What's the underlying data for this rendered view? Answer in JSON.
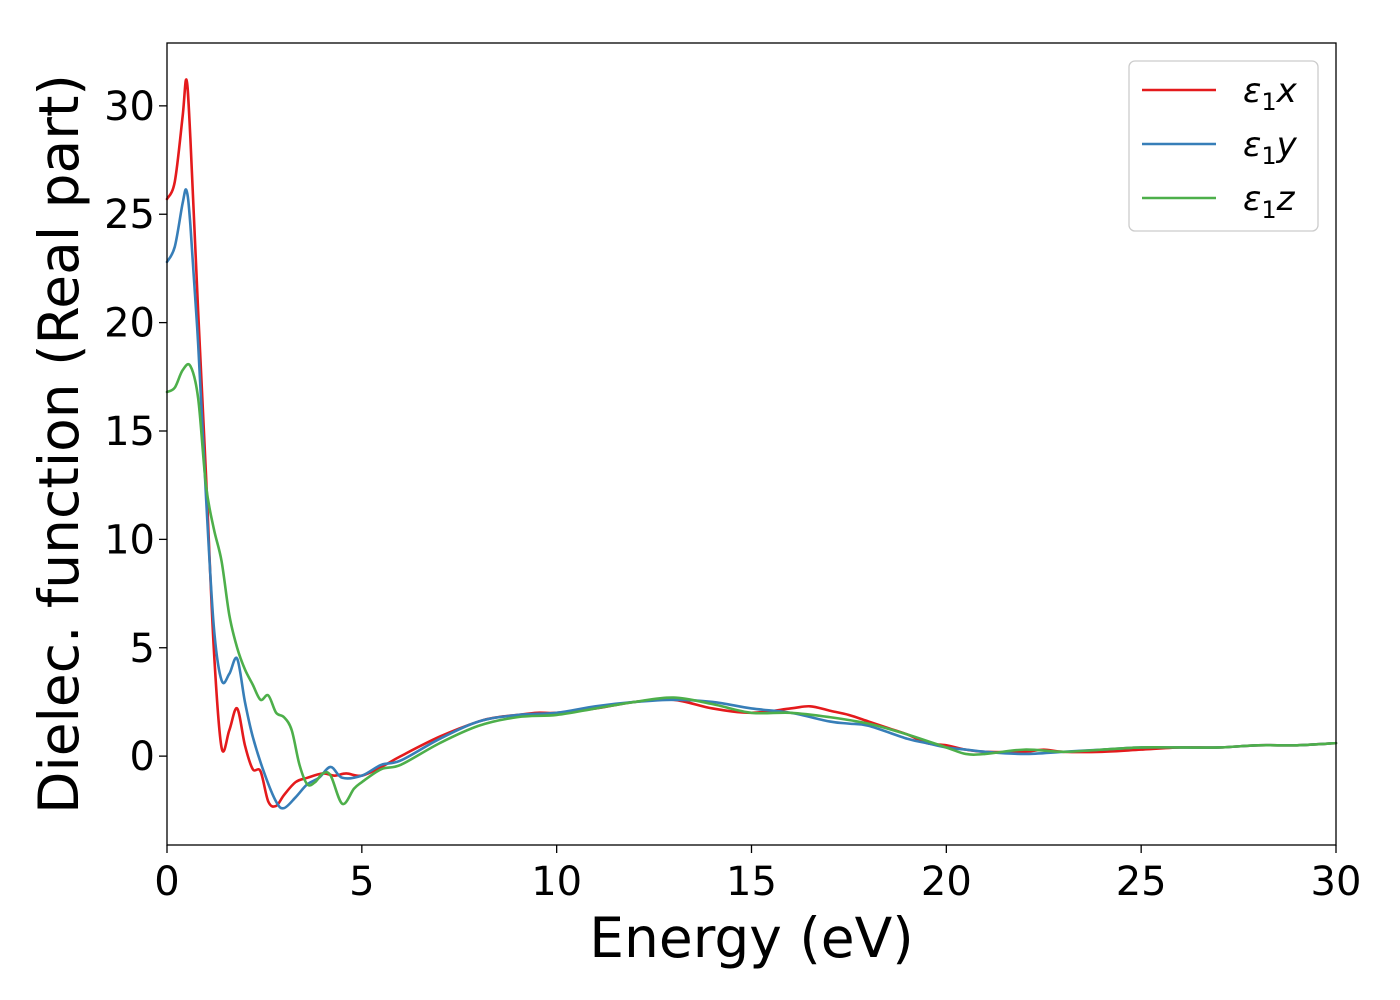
{
  "chart_data": {
    "type": "line",
    "xlabel": "Energy (eV)",
    "ylabel": "Dielec. function (Real part)",
    "xlim": [
      0,
      30
    ],
    "ylim": [
      -4.1,
      32.9
    ],
    "xticks": [
      "0",
      "5",
      "10",
      "15",
      "20",
      "25",
      "30"
    ],
    "yticks": [
      "0",
      "5",
      "10",
      "15",
      "20",
      "25",
      "30"
    ],
    "grid": false,
    "legend_position": "top-right",
    "series": [
      {
        "name": "ε1x",
        "legend": {
          "base": "ε",
          "sub": "1",
          "axis": "x"
        },
        "color": "#e41a1c",
        "x": [
          0,
          0.2,
          0.4,
          0.5,
          0.6,
          0.8,
          1.0,
          1.2,
          1.4,
          1.6,
          1.8,
          2.0,
          2.2,
          2.4,
          2.6,
          2.8,
          3.0,
          3.3,
          3.6,
          4.0,
          4.3,
          4.6,
          5.0,
          5.5,
          6.0,
          7.0,
          8.0,
          8.5,
          9.0,
          9.5,
          10,
          11,
          12,
          13,
          14,
          15,
          16,
          16.5,
          17,
          17.5,
          18,
          18.5,
          19,
          19.5,
          20,
          20.5,
          21,
          22,
          22.5,
          23,
          24,
          25,
          26,
          27,
          28,
          29,
          30
        ],
        "y": [
          25.7,
          26.5,
          29.5,
          31.2,
          28.5,
          20.5,
          13.0,
          5.0,
          0.4,
          1.2,
          2.2,
          0.5,
          -0.6,
          -0.7,
          -2.1,
          -2.3,
          -1.8,
          -1.2,
          -1.0,
          -0.8,
          -0.9,
          -0.8,
          -0.9,
          -0.5,
          0.0,
          0.9,
          1.6,
          1.8,
          1.9,
          2.0,
          2.0,
          2.2,
          2.5,
          2.6,
          2.2,
          2.0,
          2.2,
          2.3,
          2.1,
          1.9,
          1.6,
          1.3,
          1.0,
          0.6,
          0.5,
          0.3,
          0.2,
          0.2,
          0.3,
          0.2,
          0.2,
          0.3,
          0.4,
          0.4,
          0.5,
          0.5,
          0.6
        ]
      },
      {
        "name": "ε1y",
        "legend": {
          "base": "ε",
          "sub": "1",
          "axis": "y"
        },
        "color": "#377eb8",
        "x": [
          0,
          0.2,
          0.4,
          0.5,
          0.6,
          0.8,
          1.0,
          1.2,
          1.4,
          1.6,
          1.8,
          2.0,
          2.2,
          2.5,
          2.8,
          3.0,
          3.3,
          3.6,
          3.9,
          4.2,
          4.5,
          5.0,
          5.5,
          6.0,
          7.0,
          8.0,
          9.0,
          10,
          11,
          12,
          13,
          14,
          15,
          16,
          17,
          17.5,
          18,
          19,
          19.5,
          20,
          20.5,
          21,
          22,
          23,
          24,
          25,
          26,
          27,
          28,
          29,
          30
        ],
        "y": [
          22.8,
          23.5,
          25.5,
          26.1,
          24.5,
          19.0,
          12.0,
          6.0,
          3.5,
          3.8,
          4.5,
          2.5,
          0.9,
          -0.8,
          -2.1,
          -2.4,
          -1.9,
          -1.3,
          -1.0,
          -0.5,
          -1.0,
          -0.9,
          -0.4,
          -0.2,
          0.8,
          1.6,
          1.9,
          2.0,
          2.3,
          2.5,
          2.6,
          2.5,
          2.2,
          2.0,
          1.6,
          1.5,
          1.4,
          0.8,
          0.6,
          0.4,
          0.3,
          0.2,
          0.1,
          0.2,
          0.3,
          0.4,
          0.4,
          0.4,
          0.5,
          0.5,
          0.6
        ]
      },
      {
        "name": "ε1z",
        "legend": {
          "base": "ε",
          "sub": "1",
          "axis": "z"
        },
        "color": "#4daf4a",
        "x": [
          0,
          0.2,
          0.4,
          0.6,
          0.8,
          1.0,
          1.2,
          1.4,
          1.6,
          1.8,
          2.0,
          2.2,
          2.4,
          2.6,
          2.8,
          3.0,
          3.2,
          3.4,
          3.6,
          3.8,
          4.0,
          4.2,
          4.5,
          4.8,
          5.0,
          5.5,
          6.0,
          7.0,
          8.0,
          9.0,
          10,
          11,
          12,
          13,
          14,
          15,
          16,
          17,
          18,
          19,
          20,
          20.5,
          21,
          22,
          23,
          24,
          25,
          26,
          27,
          28,
          29,
          30
        ],
        "y": [
          16.8,
          17.0,
          17.8,
          18.0,
          16.5,
          12.5,
          10.5,
          9.0,
          6.5,
          5.0,
          4.0,
          3.3,
          2.6,
          2.8,
          2.0,
          1.8,
          1.2,
          -0.4,
          -1.3,
          -1.2,
          -0.8,
          -0.9,
          -2.2,
          -1.5,
          -1.2,
          -0.6,
          -0.4,
          0.6,
          1.4,
          1.8,
          1.9,
          2.2,
          2.5,
          2.7,
          2.4,
          2.0,
          2.0,
          1.8,
          1.5,
          1.0,
          0.4,
          0.1,
          0.1,
          0.3,
          0.2,
          0.3,
          0.4,
          0.4,
          0.4,
          0.5,
          0.5,
          0.6
        ]
      }
    ]
  }
}
